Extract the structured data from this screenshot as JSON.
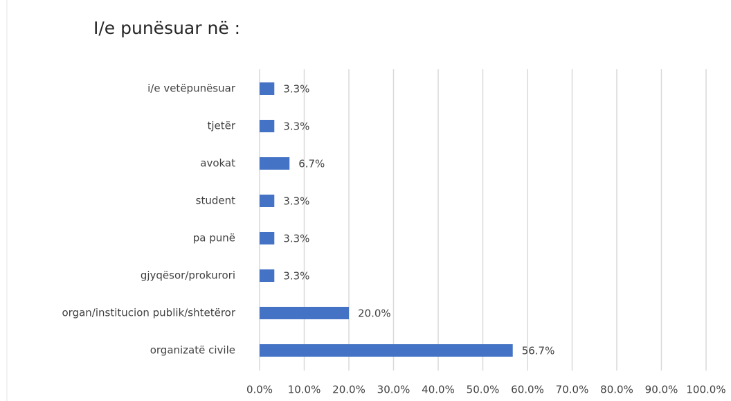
{
  "chart_data": {
    "type": "barh",
    "title": "I/e punësuar në :",
    "categories": [
      "i/e vetëpunësuar",
      "tjetër",
      "avokat",
      "student",
      "pa punë",
      "gjyqësor/prokurori",
      "organ/institucion publik/shtetëror",
      "organizatë civile"
    ],
    "values": [
      3.3,
      3.3,
      6.7,
      3.3,
      3.3,
      3.3,
      20.0,
      56.7
    ],
    "value_labels": [
      "3.3%",
      "3.3%",
      "6.7%",
      "3.3%",
      "3.3%",
      "3.3%",
      "20.0%",
      "56.7%"
    ],
    "color": "#4472c4",
    "xlim": [
      0,
      100
    ],
    "xticks": [
      {
        "value": 0,
        "label": "0.0%"
      },
      {
        "value": 10,
        "label": "10.0%"
      },
      {
        "value": 20,
        "label": "20.0%"
      },
      {
        "value": 30,
        "label": "30.0%"
      },
      {
        "value": 40,
        "label": "40.0%"
      },
      {
        "value": 50,
        "label": "50.0%"
      },
      {
        "value": 60,
        "label": "60.0%"
      },
      {
        "value": 70,
        "label": "70.0%"
      },
      {
        "value": 80,
        "label": "80.0%"
      },
      {
        "value": 90,
        "label": "90.0%"
      },
      {
        "value": 100,
        "label": "100.0%"
      }
    ],
    "grid": true
  }
}
